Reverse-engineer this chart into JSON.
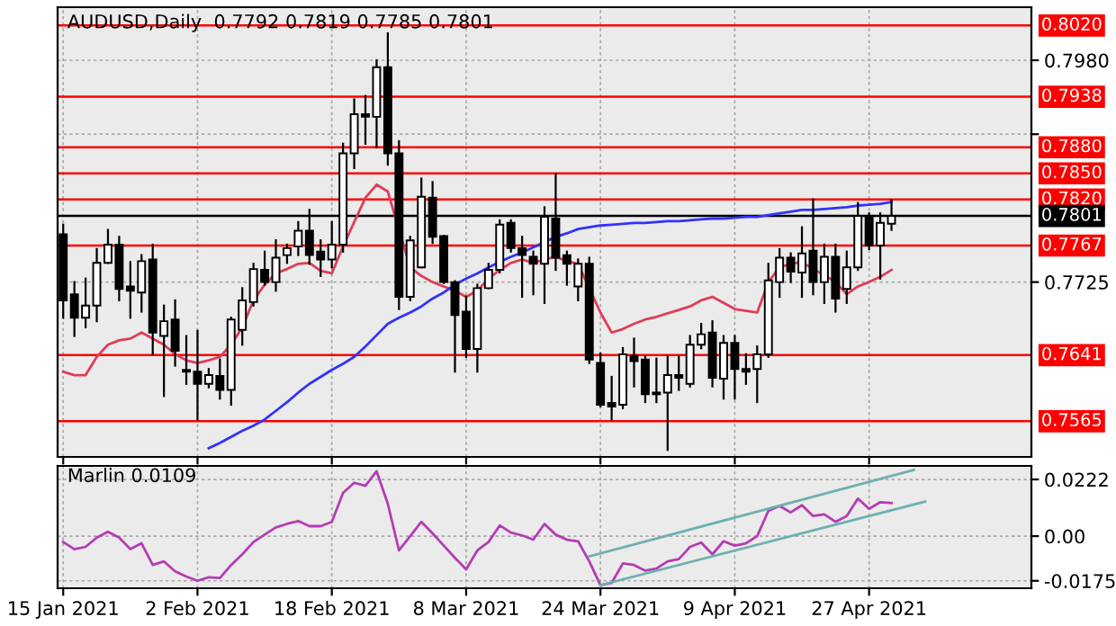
{
  "chart_data": [
    {
      "type": "candlestick",
      "title": "AUDUSD,Daily  0.7792 0.7819 0.7785 0.7801",
      "categories": [
        null,
        null,
        null,
        null,
        null,
        null,
        null,
        null,
        null,
        null,
        null,
        null,
        null,
        null,
        null,
        null,
        null,
        null,
        null,
        null,
        null,
        null,
        null,
        null,
        null,
        null,
        null,
        null,
        null,
        null,
        null,
        null,
        null,
        null,
        null,
        null,
        null,
        null,
        null,
        null,
        null,
        null,
        null,
        null,
        null,
        null,
        null,
        null,
        null,
        null,
        null,
        null,
        null,
        null,
        null,
        null,
        null,
        null,
        null,
        null,
        null,
        null,
        null,
        null,
        null,
        null,
        null,
        null,
        null,
        null,
        null,
        null,
        null,
        null,
        null,
        null,
        null,
        null,
        null,
        null,
        null,
        null,
        null,
        null,
        null,
        null,
        null
      ],
      "ohlc": [
        [
          0.778,
          0.7791,
          0.7684,
          0.7704
        ],
        [
          0.7711,
          0.7725,
          0.7663,
          0.7684
        ],
        [
          0.7684,
          0.7729,
          0.7673,
          0.7698
        ],
        [
          0.7698,
          0.7763,
          0.768,
          0.7747
        ],
        [
          0.7747,
          0.7785,
          0.7747,
          0.7768
        ],
        [
          0.7768,
          0.7777,
          0.7704,
          0.7717
        ],
        [
          0.772,
          0.7748,
          0.7684,
          0.7715
        ],
        [
          0.7713,
          0.7756,
          0.7691,
          0.7749
        ],
        [
          0.7751,
          0.7768,
          0.7642,
          0.7667
        ],
        [
          0.7663,
          0.7698,
          0.7594,
          0.768
        ],
        [
          0.7682,
          0.7704,
          0.7629,
          0.7646
        ],
        [
          0.7624,
          0.7663,
          0.7608,
          0.7622
        ],
        [
          0.7622,
          0.7669,
          0.7567,
          0.7608
        ],
        [
          0.7608,
          0.7625,
          0.7604,
          0.7618
        ],
        [
          0.7617,
          0.7636,
          0.7591,
          0.7601
        ],
        [
          0.7601,
          0.7684,
          0.7584,
          0.7682
        ],
        [
          0.767,
          0.7718,
          0.7653,
          0.7704
        ],
        [
          0.7702,
          0.7746,
          0.7698,
          0.774
        ],
        [
          0.7739,
          0.776,
          0.7722,
          0.7725
        ],
        [
          0.7725,
          0.7773,
          0.7715,
          0.7753
        ],
        [
          0.7756,
          0.7768,
          0.7747,
          0.7764
        ],
        [
          0.7766,
          0.7794,
          0.7756,
          0.7784
        ],
        [
          0.7784,
          0.7808,
          0.7746,
          0.7756
        ],
        [
          0.776,
          0.7773,
          0.7732,
          0.7751
        ],
        [
          0.7751,
          0.7794,
          0.7742,
          0.7768
        ],
        [
          0.7768,
          0.7884,
          0.776,
          0.7873
        ],
        [
          0.7873,
          0.7935,
          0.7856,
          0.7918
        ],
        [
          0.7918,
          0.7939,
          0.7884,
          0.7915
        ],
        [
          0.7915,
          0.798,
          0.788,
          0.7972
        ],
        [
          0.7972,
          0.8011,
          0.786,
          0.7873
        ],
        [
          0.7873,
          0.7887,
          0.7694,
          0.7708
        ],
        [
          0.7708,
          0.7777,
          0.7704,
          0.7773
        ],
        [
          0.7742,
          0.7844,
          0.7742,
          0.7823
        ],
        [
          0.7822,
          0.784,
          0.777,
          0.7777
        ],
        [
          0.7778,
          0.7778,
          0.7724,
          0.7725
        ],
        [
          0.7725,
          0.7726,
          0.7622,
          0.7687
        ],
        [
          0.7691,
          0.7708,
          0.7639,
          0.7648
        ],
        [
          0.7648,
          0.7722,
          0.7622,
          0.7718
        ],
        [
          0.7718,
          0.7746,
          0.7718,
          0.7739
        ],
        [
          0.7739,
          0.7796,
          0.7736,
          0.7791
        ],
        [
          0.7793,
          0.7796,
          0.776,
          0.7764
        ],
        [
          0.7764,
          0.7777,
          0.7708,
          0.7756
        ],
        [
          0.7754,
          0.776,
          0.7711,
          0.7746
        ],
        [
          0.7746,
          0.7811,
          0.7701,
          0.78
        ],
        [
          0.7798,
          0.7849,
          0.7739,
          0.7753
        ],
        [
          0.7756,
          0.776,
          0.7722,
          0.7746
        ],
        [
          0.772,
          0.7751,
          0.7704,
          0.7746
        ],
        [
          0.7746,
          0.7753,
          0.7632,
          0.7636
        ],
        [
          0.7632,
          0.7643,
          0.7582,
          0.7584
        ],
        [
          0.7586,
          0.7616,
          0.7567,
          0.7582
        ],
        [
          0.7584,
          0.7649,
          0.758,
          0.7642
        ],
        [
          0.764,
          0.766,
          0.7605,
          0.7634
        ],
        [
          0.7636,
          0.7639,
          0.7587,
          0.7596
        ],
        [
          0.7598,
          0.7637,
          0.7587,
          0.7596
        ],
        [
          0.7598,
          0.7639,
          0.7532,
          0.7618
        ],
        [
          0.7618,
          0.7639,
          0.7601,
          0.7615
        ],
        [
          0.7608,
          0.7663,
          0.7605,
          0.7653
        ],
        [
          0.7653,
          0.7677,
          0.7649,
          0.7665
        ],
        [
          0.7667,
          0.768,
          0.7605,
          0.7615
        ],
        [
          0.7614,
          0.7663,
          0.7591,
          0.7655
        ],
        [
          0.7655,
          0.7663,
          0.7591,
          0.7625
        ],
        [
          0.7625,
          0.7642,
          0.7608,
          0.7622
        ],
        [
          0.7625,
          0.7651,
          0.7587,
          0.7642
        ],
        [
          0.7642,
          0.7746,
          0.7639,
          0.7727
        ],
        [
          0.7725,
          0.7763,
          0.7708,
          0.7753
        ],
        [
          0.7753,
          0.7758,
          0.7725,
          0.7737
        ],
        [
          0.7736,
          0.7788,
          0.7708,
          0.7758
        ],
        [
          0.7761,
          0.782,
          0.7711,
          0.7725
        ],
        [
          0.7725,
          0.7768,
          0.7701,
          0.7754
        ],
        [
          0.7754,
          0.7768,
          0.7691,
          0.7706
        ],
        [
          0.7717,
          0.776,
          0.7701,
          0.7742
        ],
        [
          0.7742,
          0.7816,
          0.7739,
          0.7801
        ],
        [
          0.78,
          0.7804,
          0.7763,
          0.7767
        ],
        [
          0.7767,
          0.7804,
          0.7729,
          0.7793
        ],
        [
          0.7792,
          0.7819,
          0.7785,
          0.7801
        ],
        null,
        null,
        null,
        null,
        null,
        null,
        null,
        null,
        null,
        null,
        null,
        null
      ],
      "series": [
        {
          "type": "line",
          "color": "#e03c5a",
          "values": [
            0.7622,
            0.7618,
            0.7618,
            0.7639,
            0.7653,
            0.7658,
            0.766,
            0.7667,
            0.766,
            0.7653,
            0.7642,
            0.7635,
            0.7632,
            0.7635,
            0.7639,
            0.7653,
            0.7673,
            0.7704,
            0.7722,
            0.7735,
            0.774,
            0.7746,
            0.7747,
            0.7738,
            0.7735,
            0.7766,
            0.7794,
            0.7822,
            0.7837,
            0.7829,
            null,
            0.7742,
            0.7732,
            0.7725,
            0.772,
            0.7715,
            0.7708,
            0.7715,
            0.7729,
            0.7739,
            0.7747,
            0.7751,
            0.7747,
            0.7751,
            0.7754,
            0.7749,
            0.7746,
            null,
            0.769,
            0.7667,
            0.7671,
            0.7677,
            0.7682,
            0.7685,
            0.7689,
            0.7693,
            0.7697,
            0.7704,
            0.7708,
            0.7701,
            0.7694,
            0.7692,
            0.769,
            0.7725,
            0.7742,
            0.7746,
            0.7748,
            0.774,
            0.7733,
            0.7725,
            0.7711,
            0.772,
            0.7725,
            0.7731,
            0.7739,
            null,
            null,
            null,
            null,
            null,
            null,
            null,
            null,
            null,
            null,
            null,
            null
          ]
        },
        {
          "type": "line",
          "color": "#3232ff",
          "values": [
            null,
            null,
            null,
            null,
            null,
            null,
            null,
            null,
            null,
            null,
            null,
            null,
            null,
            0.7534,
            0.754,
            0.7547,
            0.7554,
            0.756,
            0.7567,
            0.7577,
            0.7587,
            0.7598,
            0.7608,
            0.7616,
            0.7624,
            0.7631,
            0.7639,
            0.7651,
            0.7664,
            0.7677,
            0.7684,
            0.769,
            0.7697,
            0.7706,
            0.7713,
            0.7722,
            0.7729,
            0.7735,
            0.7742,
            0.7748,
            0.7754,
            0.7759,
            0.7765,
            0.7771,
            0.7777,
            0.7781,
            0.7786,
            0.7788,
            0.779,
            0.7791,
            0.7792,
            0.7793,
            0.7793,
            0.7794,
            0.7795,
            0.7795,
            0.7796,
            0.7797,
            0.7798,
            0.7798,
            0.7799,
            0.78,
            0.78,
            0.7802,
            0.7804,
            0.7806,
            0.7808,
            0.7808,
            0.7809,
            0.781,
            0.7811,
            0.7813,
            0.7814,
            0.7815,
            0.7817,
            null,
            null,
            null,
            null,
            null,
            null,
            null,
            null,
            null,
            null,
            null,
            null
          ]
        }
      ],
      "ylim": [
        0.7524,
        0.8041
      ],
      "yticks": [
        0.7725,
        {
          "value": 0.7895,
          "label": null
        },
        {
          "value": 0.798,
          "label": "0.7980"
        }
      ],
      "ref_lines": [
        {
          "axis": "y",
          "value": 0.802,
          "label": "0.8020",
          "color": "#ff0000"
        },
        {
          "axis": "y",
          "value": 0.7938,
          "label": "0.7938",
          "color": "#ff0000"
        },
        {
          "axis": "y",
          "value": 0.788,
          "label": "0.7880",
          "color": "#ff0000"
        },
        {
          "axis": "y",
          "value": 0.785,
          "label": "0.7850",
          "color": "#ff0000"
        },
        {
          "axis": "y",
          "value": 0.782,
          "label": "0.7820",
          "color": "#ff0000"
        },
        {
          "axis": "y",
          "value": 0.7801,
          "label": "0.7801",
          "color": "#000000"
        },
        {
          "axis": "y",
          "value": 0.7767,
          "label": "0.7767",
          "color": "#ff0000"
        },
        {
          "axis": "y",
          "value": 0.7641,
          "label": "0.7641",
          "color": "#ff0000"
        },
        {
          "axis": "y",
          "value": 0.7565,
          "label": "0.7565",
          "color": "#ff0000"
        }
      ],
      "grid": true,
      "tick_labels": "y"
    },
    {
      "type": "line",
      "title": "Marlin 0.0109",
      "categories": [
        "15 Jan 2021",
        null,
        null,
        null,
        null,
        null,
        null,
        null,
        null,
        null,
        null,
        null,
        "2 Feb 2021",
        null,
        null,
        null,
        null,
        null,
        null,
        null,
        null,
        null,
        null,
        null,
        "18 Feb 2021",
        null,
        null,
        null,
        null,
        null,
        null,
        null,
        null,
        null,
        null,
        null,
        "8 Mar 2021",
        null,
        null,
        null,
        null,
        null,
        null,
        null,
        null,
        null,
        null,
        null,
        "24 Mar 2021",
        null,
        null,
        null,
        null,
        null,
        null,
        null,
        null,
        null,
        null,
        null,
        "9 Apr 2021",
        null,
        null,
        null,
        null,
        null,
        null,
        null,
        null,
        null,
        null,
        null,
        "27 Apr 2021",
        null,
        null,
        null,
        null,
        null,
        null,
        null,
        null,
        null,
        null,
        null,
        null,
        null,
        null
      ],
      "series": [
        {
          "color": "#b43cb4",
          "values": [
            -0.0023,
            -0.0051,
            -0.0042,
            -0.0006,
            0.0017,
            -0.0006,
            -0.0051,
            -0.0028,
            -0.0113,
            -0.0099,
            -0.0138,
            -0.0158,
            -0.0175,
            -0.0161,
            -0.0164,
            -0.0113,
            -0.0071,
            -0.0023,
            0.0006,
            0.0034,
            0.0048,
            0.0059,
            0.0039,
            0.0039,
            0.0056,
            0.0169,
            0.0209,
            0.0197,
            0.0254,
            0.0127,
            -0.0056,
            0.0,
            0.0056,
            0.0011,
            -0.0037,
            -0.0085,
            -0.013,
            -0.0056,
            -0.0023,
            0.0042,
            0.0014,
            0.0003,
            -0.0014,
            0.0048,
            0.0006,
            -0.0014,
            -0.002,
            -0.0099,
            -0.0192,
            -0.0183,
            -0.0107,
            -0.0113,
            -0.0135,
            -0.0127,
            -0.0099,
            -0.009,
            -0.0042,
            -0.0025,
            -0.0071,
            -0.002,
            -0.0037,
            -0.0028,
            0.0,
            0.0099,
            0.0118,
            0.0093,
            0.0121,
            0.0079,
            0.0085,
            0.0056,
            0.0079,
            0.0147,
            0.0107,
            0.0133,
            0.013,
            null,
            null,
            null,
            null,
            null,
            null,
            null,
            null,
            null,
            null,
            null,
            null
          ]
        },
        {
          "color": "#6fb0b0",
          "values": [
            null,
            null,
            null,
            null,
            null,
            null,
            null,
            null,
            null,
            null,
            null,
            null,
            null,
            null,
            null,
            null,
            null,
            null,
            null,
            null,
            null,
            null,
            null,
            null,
            null,
            null,
            null,
            null,
            null,
            null,
            null,
            null,
            null,
            null,
            null,
            null,
            null,
            null,
            null,
            null,
            null,
            null,
            null,
            null,
            null,
            null,
            null,
            -0.0079,
            null,
            null,
            null,
            null,
            null,
            null,
            null,
            null,
            null,
            null,
            null,
            null,
            null,
            null,
            null,
            null,
            null,
            null,
            null,
            null,
            null,
            null,
            null,
            null,
            null,
            null,
            null,
            null,
            0.0259,
            null,
            null,
            null,
            null,
            null,
            null,
            null,
            null,
            null,
            null
          ]
        },
        {
          "color": "#6fb0b0",
          "values": [
            null,
            null,
            null,
            null,
            null,
            null,
            null,
            null,
            null,
            null,
            null,
            null,
            null,
            null,
            null,
            null,
            null,
            null,
            null,
            null,
            null,
            null,
            null,
            null,
            null,
            null,
            null,
            null,
            null,
            null,
            null,
            null,
            null,
            null,
            null,
            null,
            null,
            null,
            null,
            null,
            null,
            null,
            null,
            null,
            null,
            null,
            null,
            null,
            -0.0192,
            null,
            null,
            null,
            null,
            null,
            null,
            null,
            null,
            null,
            null,
            null,
            null,
            null,
            null,
            null,
            null,
            null,
            null,
            null,
            null,
            null,
            null,
            null,
            null,
            null,
            null,
            null,
            null,
            0.0135,
            null,
            null,
            null,
            null,
            null,
            null,
            null,
            null,
            null
          ]
        }
      ],
      "ylim": [
        -0.0204,
        0.0275
      ],
      "yticks": [
        0.0222,
        {
          "value": 0,
          "label": "0.00"
        },
        {
          "value": -0.0175,
          "label": "-0.0175"
        }
      ],
      "grid": true
    }
  ]
}
